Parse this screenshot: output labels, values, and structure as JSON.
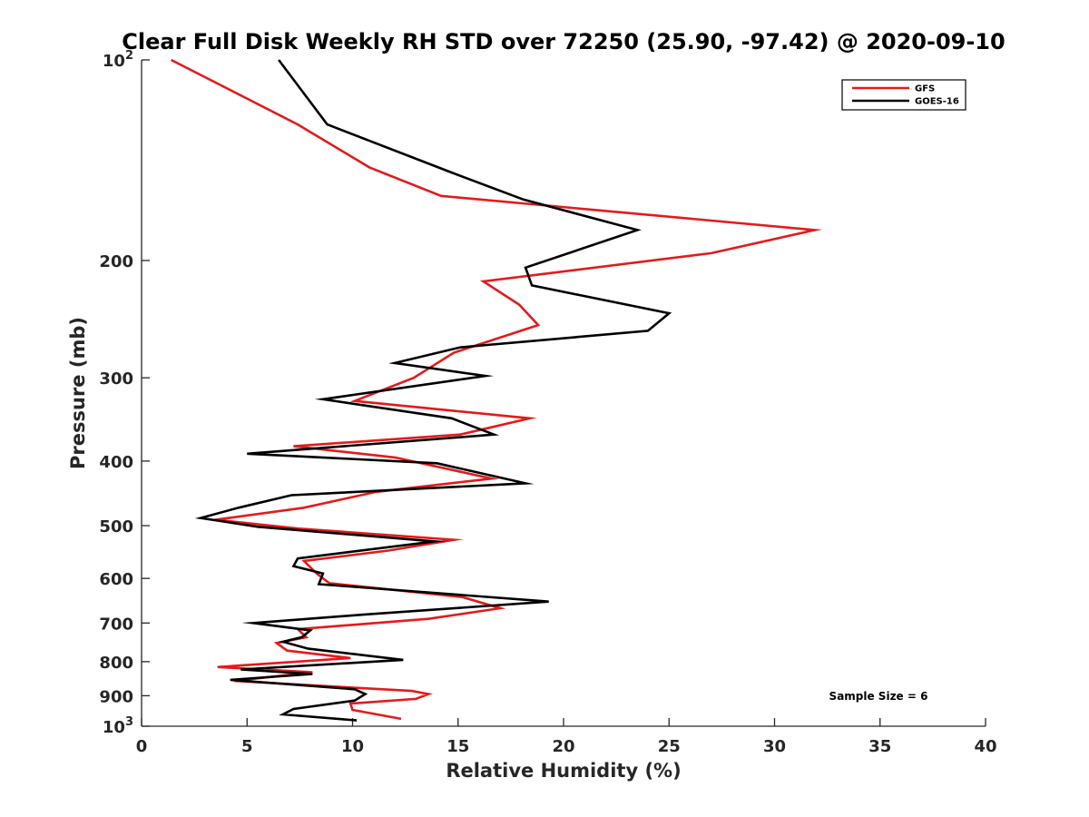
{
  "chart_data": {
    "type": "line",
    "title": "Clear Full Disk Weekly RH STD over 72250 (25.90, -97.42) @ 2020-09-10",
    "xlabel": "Relative Humidity (%)",
    "ylabel": "Pressure (mb)",
    "xlim": [
      0,
      40
    ],
    "ylim": [
      100,
      1000
    ],
    "y_scale": "log",
    "y_reversed": true,
    "grid": false,
    "legend_position": "top-right",
    "x_ticks": [
      "0",
      "5",
      "10",
      "15",
      "20",
      "25",
      "30",
      "35",
      "40"
    ],
    "y_ticks": [
      {
        "value": 100,
        "base": "10",
        "exp": "2"
      },
      {
        "value": 200,
        "label": "200"
      },
      {
        "value": 300,
        "label": "300"
      },
      {
        "value": 400,
        "label": "400"
      },
      {
        "value": 500,
        "label": "500"
      },
      {
        "value": 600,
        "label": "600"
      },
      {
        "value": 700,
        "label": "700"
      },
      {
        "value": 800,
        "label": "800"
      },
      {
        "value": 900,
        "label": "900"
      },
      {
        "value": 1000,
        "base": "10",
        "exp": "3"
      }
    ],
    "annotation": "Sample Size = 6",
    "series": [
      {
        "name": "GFS",
        "color": "#e41a1c",
        "points": [
          [
            1.4,
            100
          ],
          [
            7.4,
            125
          ],
          [
            10.8,
            145
          ],
          [
            14.2,
            160
          ],
          [
            31.9,
            180
          ],
          [
            27,
            195
          ],
          [
            16.2,
            215
          ],
          [
            17.9,
            233
          ],
          [
            18.8,
            250
          ],
          [
            14.8,
            275
          ],
          [
            12.9,
            300
          ],
          [
            10.1,
            325
          ],
          [
            18.4,
            345
          ],
          [
            15.1,
            365
          ],
          [
            7.2,
            380
          ],
          [
            12,
            395
          ],
          [
            16.6,
            425
          ],
          [
            11.1,
            445
          ],
          [
            7.7,
            470
          ],
          [
            3.5,
            490
          ],
          [
            7.4,
            505
          ],
          [
            14.8,
            525
          ],
          [
            11.7,
            545
          ],
          [
            7.7,
            565
          ],
          [
            8.3,
            590
          ],
          [
            8.9,
            610
          ],
          [
            15.2,
            640
          ],
          [
            17,
            665
          ],
          [
            13.6,
            690
          ],
          [
            7.4,
            715
          ],
          [
            7.8,
            735
          ],
          [
            6.4,
            750
          ],
          [
            6.9,
            770
          ],
          [
            9.9,
            790
          ],
          [
            3.6,
            815
          ],
          [
            8.1,
            830
          ],
          [
            4.4,
            855
          ],
          [
            12.8,
            885
          ],
          [
            13.6,
            895
          ],
          [
            13,
            910
          ],
          [
            9.9,
            925
          ],
          [
            10,
            945
          ],
          [
            12.3,
            975
          ]
        ]
      },
      {
        "name": "GOES-16",
        "color": "#000000",
        "points": [
          [
            6.5,
            100
          ],
          [
            8.8,
            125
          ],
          [
            14.8,
            148
          ],
          [
            18.1,
            162
          ],
          [
            23.5,
            180
          ],
          [
            18.2,
            205
          ],
          [
            18.5,
            218
          ],
          [
            25,
            240
          ],
          [
            24,
            255
          ],
          [
            15.1,
            270
          ],
          [
            12,
            285
          ],
          [
            16.3,
            298
          ],
          [
            8.6,
            323
          ],
          [
            14.7,
            345
          ],
          [
            16.7,
            365
          ],
          [
            5,
            390
          ],
          [
            14,
            403
          ],
          [
            18.2,
            432
          ],
          [
            7.1,
            450
          ],
          [
            4.6,
            470
          ],
          [
            2.8,
            487
          ],
          [
            5.5,
            502
          ],
          [
            13.9,
            528
          ],
          [
            7.4,
            560
          ],
          [
            7.2,
            575
          ],
          [
            8.6,
            590
          ],
          [
            8.4,
            612
          ],
          [
            19.3,
            650
          ],
          [
            10.5,
            680
          ],
          [
            5.3,
            700
          ],
          [
            8,
            718
          ],
          [
            7.6,
            735
          ],
          [
            6.7,
            747
          ],
          [
            7.9,
            765
          ],
          [
            12.4,
            795
          ],
          [
            4.7,
            822
          ],
          [
            8.1,
            835
          ],
          [
            4.2,
            852
          ],
          [
            10.1,
            880
          ],
          [
            10.6,
            895
          ],
          [
            10.1,
            915
          ],
          [
            7.2,
            942
          ],
          [
            6.7,
            960
          ],
          [
            10.2,
            980
          ]
        ]
      }
    ]
  }
}
